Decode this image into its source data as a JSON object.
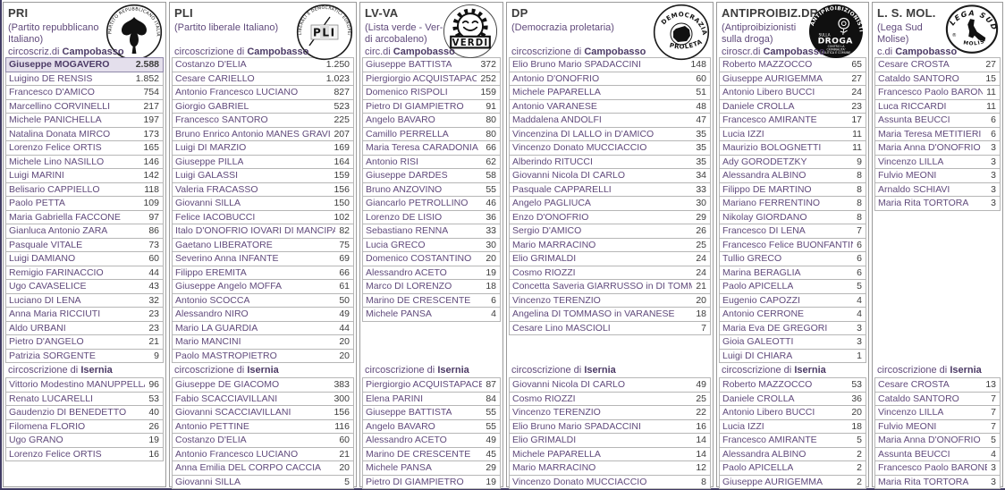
{
  "page": {
    "edge_color": "#403b63",
    "background": "#ffffff"
  },
  "colors": {
    "candidate_name_text": "#604a7b",
    "vote_value_text": "#3c3c3c",
    "row_border": "#b6b6b6",
    "panel_border": "#9a9a9a",
    "highlight_row_bg": "#e4dfec"
  },
  "districts": {
    "campobasso_city": "Campobasso",
    "isernia_label_prefix": "circoscrizione di ",
    "isernia_city": "Isernia"
  },
  "parties": [
    {
      "code": "PRI",
      "name_lines": [
        "(Partito repubblicano",
        "Italiano)"
      ],
      "campobasso_label_prefix": "circoscriz.di ",
      "logo": {
        "id": "pri",
        "ring_text": "PARTITO REPUBBLICANO ITALIANO"
      },
      "campobasso": [
        {
          "name": "Giuseppe MOGAVERO",
          "votes": "2.588",
          "highlight": true
        },
        {
          "name": "Luigino DE RENSIS",
          "votes": "1.852"
        },
        {
          "name": "Francesco D'AMICO",
          "votes": "754"
        },
        {
          "name": "Marcellino CORVINELLI",
          "votes": "217"
        },
        {
          "name": "Michele PANICHELLA",
          "votes": "197"
        },
        {
          "name": "Natalina Donata MIRCO",
          "votes": "173"
        },
        {
          "name": "Lorenzo Felice ORTIS",
          "votes": "165"
        },
        {
          "name": "Michele Lino NASILLO",
          "votes": "146"
        },
        {
          "name": "Luigi MARINI",
          "votes": "142"
        },
        {
          "name": "Belisario CAPPIELLO",
          "votes": "118"
        },
        {
          "name": "Paolo PETTA",
          "votes": "109"
        },
        {
          "name": "Maria Gabriella FACCONE",
          "votes": "97"
        },
        {
          "name": "Gianluca Antonio ZARA",
          "votes": "86"
        },
        {
          "name": "Pasquale VITALE",
          "votes": "73"
        },
        {
          "name": "Luigi DAMIANO",
          "votes": "60"
        },
        {
          "name": "Remigio FARINACCIO",
          "votes": "44"
        },
        {
          "name": "Ugo CAVASELICE",
          "votes": "43"
        },
        {
          "name": "Luciano DI LENA",
          "votes": "32"
        },
        {
          "name": "Anna Maria RICCIUTI",
          "votes": "23"
        },
        {
          "name": "Aldo URBANI",
          "votes": "23"
        },
        {
          "name": "Pietro D'ANGELO",
          "votes": "21"
        },
        {
          "name": "Patrizia SORGENTE",
          "votes": "9"
        }
      ],
      "isernia": [
        {
          "name": "Vittorio Modestino MANUPPELLA",
          "votes": "96"
        },
        {
          "name": "Renato LUCARELLI",
          "votes": "53"
        },
        {
          "name": "Gaudenzio DI BENEDETTO",
          "votes": "40"
        },
        {
          "name": "Filomena FLORIO",
          "votes": "26"
        },
        {
          "name": "Ugo GRANO",
          "votes": "19"
        },
        {
          "name": "Lorenzo Felice ORTIS",
          "votes": "16"
        }
      ]
    },
    {
      "code": "PLI",
      "name_lines": [
        "(Partito liberale Italiano)"
      ],
      "campobasso_label_prefix": "circoscrizione di ",
      "logo": {
        "id": "pli",
        "ring_text": "LIBERALI E DEMOCRATICI EUROPEI",
        "letters": "PLI"
      },
      "campobasso": [
        {
          "name": "Costanzo D'ELIA",
          "votes": "1.250"
        },
        {
          "name": "Cesare CARIELLO",
          "votes": "1.023"
        },
        {
          "name": "Antonio Francesco LUCIANO",
          "votes": "827"
        },
        {
          "name": "Giorgio GABRIEL",
          "votes": "523"
        },
        {
          "name": "Francesco SANTORO",
          "votes": "225"
        },
        {
          "name": "Bruno Enrico Antonio MANES GRAVINA",
          "votes": "207"
        },
        {
          "name": "Luigi DI MARZIO",
          "votes": "169"
        },
        {
          "name": "Giuseppe PILLA",
          "votes": "164"
        },
        {
          "name": "Luigi GALASSI",
          "votes": "159"
        },
        {
          "name": "Valeria FRACASSO",
          "votes": "156"
        },
        {
          "name": "Giovanni SILLA",
          "votes": "150"
        },
        {
          "name": "Felice IACOBUCCI",
          "votes": "102"
        },
        {
          "name": "Italo D'ONOFRIO IOVARI DI MANCIPA",
          "votes": "82"
        },
        {
          "name": "Gaetano LIBERATORE",
          "votes": "75"
        },
        {
          "name": "Severino Anna INFANTE",
          "votes": "69"
        },
        {
          "name": "Filippo EREMITA",
          "votes": "66"
        },
        {
          "name": "Giuseppe Angelo MOFFA",
          "votes": "61"
        },
        {
          "name": "Antonio SCOCCA",
          "votes": "50"
        },
        {
          "name": "Alessandro NIRO",
          "votes": "49"
        },
        {
          "name": "Mario LA GUARDIA",
          "votes": "44"
        },
        {
          "name": "Mario MANCINI",
          "votes": "20"
        },
        {
          "name": "Paolo MASTROPIETRO",
          "votes": "20"
        }
      ],
      "isernia": [
        {
          "name": "Giuseppe DE GIACOMO",
          "votes": "383"
        },
        {
          "name": "Fabio SCACCIAVILLANI",
          "votes": "300"
        },
        {
          "name": "Giovanni SCACCIAVILLANI",
          "votes": "156"
        },
        {
          "name": "Antonio PETTINE",
          "votes": "116"
        },
        {
          "name": "Costanzo D'ELIA",
          "votes": "60"
        },
        {
          "name": "Antonio Francesco LUCIANO",
          "votes": "21"
        },
        {
          "name": "Anna Emilia DEL CORPO CACCIA",
          "votes": "20"
        },
        {
          "name": "Giovanni SILLA",
          "votes": "5"
        }
      ]
    },
    {
      "code": "LV-VA",
      "name_lines": [
        "(Lista verde - Ver-",
        "di arcobaleno)"
      ],
      "campobasso_label_prefix": "circ.di ",
      "logo": {
        "id": "verdi",
        "banner_text": "VERDI"
      },
      "campobasso": [
        {
          "name": "Giuseppe BATTISTA",
          "votes": "372"
        },
        {
          "name": "Piergiorgio ACQUISTAPACE",
          "votes": "252"
        },
        {
          "name": "Domenico RISPOLI",
          "votes": "159"
        },
        {
          "name": "Pietro DI GIAMPIETRO",
          "votes": "91"
        },
        {
          "name": "Angelo BAVARO",
          "votes": "80"
        },
        {
          "name": "Camillo PERRELLA",
          "votes": "80"
        },
        {
          "name": "Maria Teresa CARADONIA",
          "votes": "66"
        },
        {
          "name": "Antonio RISI",
          "votes": "62"
        },
        {
          "name": "Giuseppe DARDES",
          "votes": "58"
        },
        {
          "name": "Bruno ANZOVINO",
          "votes": "55"
        },
        {
          "name": "Giancarlo PETROLLINO",
          "votes": "46"
        },
        {
          "name": "Lorenzo DE LISIO",
          "votes": "36"
        },
        {
          "name": "Sebastiano RENNA",
          "votes": "33"
        },
        {
          "name": "Lucia GRECO",
          "votes": "30"
        },
        {
          "name": "Domenico COSTANTINO",
          "votes": "20"
        },
        {
          "name": "Alessandro ACETO",
          "votes": "19"
        },
        {
          "name": "Marco DI LORENZO",
          "votes": "18"
        },
        {
          "name": "Marino DE CRESCENTE",
          "votes": "6"
        },
        {
          "name": "Michele PANSA",
          "votes": "4"
        }
      ],
      "isernia": [
        {
          "name": "Piergiorgio ACQUISTAPACE",
          "votes": "87"
        },
        {
          "name": "Elena PARINI",
          "votes": "84"
        },
        {
          "name": "Giuseppe BATTISTA",
          "votes": "55"
        },
        {
          "name": "Angelo BAVARO",
          "votes": "55"
        },
        {
          "name": "Alessandro ACETO",
          "votes": "49"
        },
        {
          "name": "Marino DE CRESCENTE",
          "votes": "45"
        },
        {
          "name": "Michele PANSA",
          "votes": "29"
        },
        {
          "name": "Pietro DI GIAMPIETRO",
          "votes": "19"
        }
      ]
    },
    {
      "code": "DP",
      "name_lines": [
        "(Democrazia proletaria)"
      ],
      "campobasso_label_prefix": "circoscrizione di ",
      "logo": {
        "id": "dp",
        "top_text": "DEMOCRAZIA",
        "bottom_text": "PROLETARIA"
      },
      "campobasso": [
        {
          "name": "Elio Bruno Mario SPADACCINI",
          "votes": "148"
        },
        {
          "name": "Antonio D'ONOFRIO",
          "votes": "60"
        },
        {
          "name": "Michele PAPARELLA",
          "votes": "51"
        },
        {
          "name": "Antonio VARANESE",
          "votes": "48"
        },
        {
          "name": "Maddalena ANDOLFI",
          "votes": "47"
        },
        {
          "name": "Vincenzina DI LALLO in D'AMICO",
          "votes": "35"
        },
        {
          "name": "Vincenzo Donato MUCCIACCIO",
          "votes": "35"
        },
        {
          "name": "Alberindo RITUCCI",
          "votes": "35"
        },
        {
          "name": "Giovanni Nicola DI CARLO",
          "votes": "34"
        },
        {
          "name": "Pasquale CAPPARELLI",
          "votes": "33"
        },
        {
          "name": "Angelo PAGLIUCA",
          "votes": "30"
        },
        {
          "name": "Enzo D'ONOFRIO",
          "votes": "29"
        },
        {
          "name": "Sergio D'AMICO",
          "votes": "26"
        },
        {
          "name": "Mario MARRACINO",
          "votes": "25"
        },
        {
          "name": "Elio GRIMALDI",
          "votes": "24"
        },
        {
          "name": "Cosmo RIOZZI",
          "votes": "24"
        },
        {
          "name": "Concetta Saveria GIARRUSSO in DI TOMMASO",
          "votes": "21"
        },
        {
          "name": "Vincenzo TERENZIO",
          "votes": "20"
        },
        {
          "name": "Angelina DI TOMMASO in VARANESE",
          "votes": "18"
        },
        {
          "name": "Cesare Lino MASCIOLI",
          "votes": "7"
        }
      ],
      "isernia": [
        {
          "name": "Giovanni Nicola DI CARLO",
          "votes": "49"
        },
        {
          "name": "Cosmo RIOZZI",
          "votes": "25"
        },
        {
          "name": "Vincenzo TERENZIO",
          "votes": "22"
        },
        {
          "name": "Elio Bruno Mario SPADACCINI",
          "votes": "16"
        },
        {
          "name": "Elio GRIMALDI",
          "votes": "14"
        },
        {
          "name": "Michele PAPARELLA",
          "votes": "14"
        },
        {
          "name": "Mario MARRACINO",
          "votes": "12"
        },
        {
          "name": "Vincenzo Donato MUCCIACCIO",
          "votes": "8"
        }
      ]
    },
    {
      "code": "ANTIPROIBIZ.DR.",
      "name_lines": [
        "(Antiproibizionisti",
        "sulla droga)"
      ],
      "campobasso_label_prefix": "ciroscr.di ",
      "logo": {
        "id": "antiproib",
        "ring_text": "ANTIPROIBIZIONISTI",
        "small_text": "SULLA",
        "big_text": "DROGA",
        "caption_lines": [
          "CONTRO LA",
          "CRIMINALITA'",
          "POLITICA E COMUNE"
        ]
      },
      "campobasso": [
        {
          "name": "Roberto MAZZOCCO",
          "votes": "65"
        },
        {
          "name": "Giuseppe AURIGEMMA",
          "votes": "27"
        },
        {
          "name": "Antonio Libero BUCCI",
          "votes": "24"
        },
        {
          "name": "Daniele CROLLA",
          "votes": "23"
        },
        {
          "name": "Francesco AMIRANTE",
          "votes": "17"
        },
        {
          "name": "Lucia IZZI",
          "votes": "11"
        },
        {
          "name": "Maurizio BOLOGNETTI",
          "votes": "11"
        },
        {
          "name": "Ady GORODETZKY",
          "votes": "9"
        },
        {
          "name": "Alessandra ALBINO",
          "votes": "8"
        },
        {
          "name": "Filippo DE MARTINO",
          "votes": "8"
        },
        {
          "name": "Mariano FERRENTINO",
          "votes": "8"
        },
        {
          "name": "Nikolay GIORDANO",
          "votes": "8"
        },
        {
          "name": "Francesco DI LENA",
          "votes": "7"
        },
        {
          "name": "Francesco Felice BUONFANTINO",
          "votes": "6"
        },
        {
          "name": "Tullio GRECO",
          "votes": "6"
        },
        {
          "name": "Marina BERAGLIA",
          "votes": "6"
        },
        {
          "name": "Paolo APICELLA",
          "votes": "5"
        },
        {
          "name": "Eugenio CAPOZZI",
          "votes": "4"
        },
        {
          "name": "Antonio CERRONE",
          "votes": "4"
        },
        {
          "name": "Maria Eva DE GREGORI",
          "votes": "3"
        },
        {
          "name": "Gioia GALEOTTI",
          "votes": "3"
        },
        {
          "name": "Luigi DI CHIARA",
          "votes": "1"
        }
      ],
      "isernia": [
        {
          "name": "Roberto MAZZOCCO",
          "votes": "53"
        },
        {
          "name": "Daniele CROLLA",
          "votes": "36"
        },
        {
          "name": "Antonio Libero BUCCI",
          "votes": "20"
        },
        {
          "name": "Lucia IZZI",
          "votes": "18"
        },
        {
          "name": "Francesco AMIRANTE",
          "votes": "5"
        },
        {
          "name": "Alessandra ALBINO",
          "votes": "2"
        },
        {
          "name": "Paolo APICELLA",
          "votes": "2"
        },
        {
          "name": "Giuseppe AURIGEMMA",
          "votes": "2"
        }
      ]
    },
    {
      "code": "L. S. MOL.",
      "name_lines": [
        "(Lega Sud",
        "Molise)"
      ],
      "campobasso_label_prefix": "c.di ",
      "logo": {
        "id": "legasud",
        "top_text": "LEGA SUD",
        "bottom_text": "MOLISE",
        "mark": "®"
      },
      "campobasso": [
        {
          "name": "Cesare CROSTA",
          "votes": "27"
        },
        {
          "name": "Cataldo SANTORO",
          "votes": "15"
        },
        {
          "name": "Francesco Paolo BARONE",
          "votes": "11"
        },
        {
          "name": "Luca RICCARDI",
          "votes": "11"
        },
        {
          "name": "Assunta BEUCCI",
          "votes": "6"
        },
        {
          "name": "Maria Teresa METITIERI",
          "votes": "6"
        },
        {
          "name": "Maria Anna D'ONOFRIO",
          "votes": "3"
        },
        {
          "name": "Vincenzo LILLA",
          "votes": "3"
        },
        {
          "name": "Fulvio MEONI",
          "votes": "3"
        },
        {
          "name": "Arnaldo SCHIAVI",
          "votes": "3"
        },
        {
          "name": "Maria Rita TORTORA",
          "votes": "3"
        }
      ],
      "isernia": [
        {
          "name": "Cesare CROSTA",
          "votes": "13"
        },
        {
          "name": "Cataldo SANTORO",
          "votes": "7"
        },
        {
          "name": "Vincenzo LILLA",
          "votes": "7"
        },
        {
          "name": "Fulvio MEONI",
          "votes": "7"
        },
        {
          "name": "Maria Anna D'ONOFRIO",
          "votes": "5"
        },
        {
          "name": "Assunta BEUCCI",
          "votes": "4"
        },
        {
          "name": "Francesco Paolo BARONE",
          "votes": "3"
        },
        {
          "name": "Maria Rita TORTORA",
          "votes": "3"
        }
      ]
    }
  ]
}
